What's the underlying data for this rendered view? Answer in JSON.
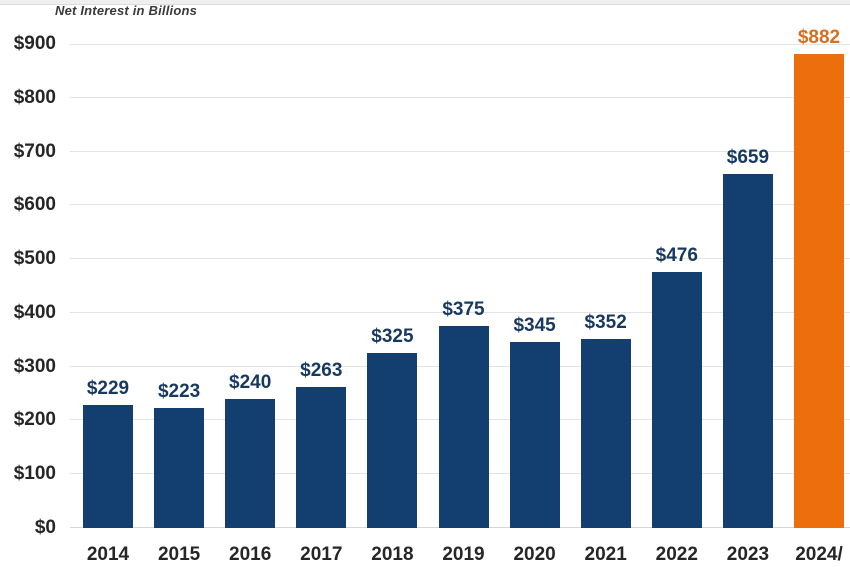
{
  "chart_data": {
    "type": "bar",
    "title": "Net Interest in Billions",
    "categories": [
      "2014",
      "2015",
      "2016",
      "2017",
      "2018",
      "2019",
      "2020",
      "2021",
      "2022",
      "2023",
      "2024/"
    ],
    "values": [
      229,
      223,
      240,
      263,
      325,
      375,
      345,
      352,
      476,
      659,
      882
    ],
    "value_labels": [
      "$229",
      "$223",
      "$240",
      "$263",
      "$325",
      "$375",
      "$345",
      "$352",
      "$476",
      "$659",
      "$882"
    ],
    "highlight_index": 10,
    "y_axis": {
      "min": 0,
      "max": 900,
      "tick_step": 100,
      "tick_labels": [
        "$0",
        "$100",
        "$200",
        "$300",
        "$400",
        "$500",
        "$600",
        "$700",
        "$800",
        "$900"
      ]
    },
    "grid": "horizontal",
    "legend": "none",
    "colors": {
      "bar": "#123F6F",
      "highlight_bar": "#ED6E0C",
      "value_label": "#17395F",
      "highlight_value_label": "#D96F1E",
      "axis_text": "#262626",
      "title_text": "#3A3A3A",
      "gridline": "#E3E3E3",
      "baseline": "#D6D6D6",
      "background": "#FFFFFF"
    }
  }
}
